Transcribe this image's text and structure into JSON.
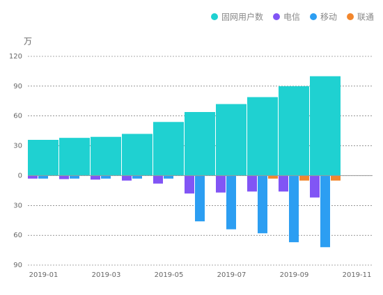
{
  "chart_data": {
    "type": "bar",
    "unit_label": "万",
    "categories": [
      "2019-01",
      null,
      "2019-03",
      null,
      "2019-05",
      null,
      "2019-07",
      null,
      "2019-09",
      null,
      "2019-11"
    ],
    "series": [
      {
        "name": "固网用户数",
        "color": "#1fd1d1",
        "values": [
          36,
          38,
          39,
          42,
          54,
          64,
          72,
          79,
          90,
          100,
          null
        ]
      },
      {
        "name": "电信",
        "color": "#8155f5",
        "values": [
          -3,
          -3.5,
          -4,
          -5,
          -8,
          -18,
          -17,
          -16,
          -16,
          -22,
          null
        ]
      },
      {
        "name": "移动",
        "color": "#2c9ef2",
        "values": [
          -3,
          -3,
          -3,
          -3,
          -3,
          -46,
          -54,
          -58,
          -67,
          -72,
          null
        ]
      },
      {
        "name": "联通",
        "color": "#f2862c",
        "values": [
          0,
          0,
          0,
          0,
          0,
          0,
          0,
          -3,
          -5,
          -5,
          null
        ]
      }
    ],
    "ylim": [
      -90,
      120
    ],
    "yticks": [
      {
        "value": -90,
        "label": "90"
      },
      {
        "value": -60,
        "label": "60"
      },
      {
        "value": -30,
        "label": "30"
      },
      0,
      30,
      60,
      90,
      120
    ],
    "grid": true,
    "legend": "top-right"
  }
}
